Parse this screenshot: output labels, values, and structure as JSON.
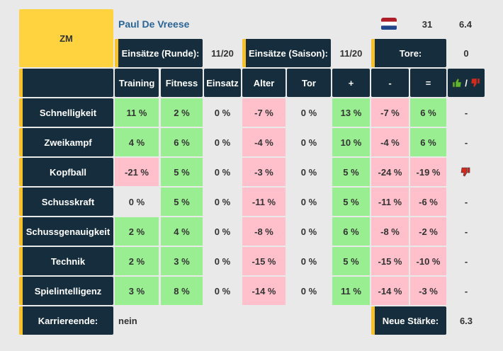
{
  "player": {
    "position": "ZM",
    "name": "Paul De Vreese",
    "age": "31",
    "strength": "6.4"
  },
  "stats": [
    {
      "label": "Einsätze (Runde):",
      "value": "11/20"
    },
    {
      "label": "Einsätze (Saison):",
      "value": "11/20"
    },
    {
      "label": "Tore:",
      "value": "0"
    }
  ],
  "table": {
    "headers": [
      "Training",
      "Fitness",
      "Einsatz",
      "Alter",
      "Tor",
      "+",
      "-",
      "=",
      "/"
    ],
    "rows": [
      {
        "label": "Schnelligkeit",
        "cells": [
          "11 %",
          "2 %",
          "0 %",
          "-7 %",
          "0 %",
          "13 %",
          "-7 %",
          "6 %"
        ],
        "trend": "-"
      },
      {
        "label": "Zweikampf",
        "cells": [
          "4 %",
          "6 %",
          "0 %",
          "-4 %",
          "0 %",
          "10 %",
          "-4 %",
          "6 %"
        ],
        "trend": "-"
      },
      {
        "label": "Kopfball",
        "cells": [
          "-21 %",
          "5 %",
          "0 %",
          "-3 %",
          "0 %",
          "5 %",
          "-24 %",
          "-19 %"
        ],
        "trend_icon": "down"
      },
      {
        "label": "Schusskraft",
        "cells": [
          "0 %",
          "5 %",
          "0 %",
          "-11 %",
          "0 %",
          "5 %",
          "-11 %",
          "-6 %"
        ],
        "trend": "-"
      },
      {
        "label": "Schussgenauigkeit",
        "cells": [
          "2 %",
          "4 %",
          "0 %",
          "-8 %",
          "0 %",
          "6 %",
          "-8 %",
          "-2 %"
        ],
        "trend": "-"
      },
      {
        "label": "Technik",
        "cells": [
          "2 %",
          "3 %",
          "0 %",
          "-15 %",
          "0 %",
          "5 %",
          "-15 %",
          "-10 %"
        ],
        "trend": "-"
      },
      {
        "label": "Spielintelligenz",
        "cells": [
          "3 %",
          "8 %",
          "0 %",
          "-14 %",
          "0 %",
          "11 %",
          "-14 %",
          "-3 %"
        ],
        "trend": "-"
      }
    ]
  },
  "footer": {
    "career_end_label": "Karriereende:",
    "career_end": "nein",
    "new_strength_label": "Neue Stärke:",
    "new_strength": "6.3"
  }
}
